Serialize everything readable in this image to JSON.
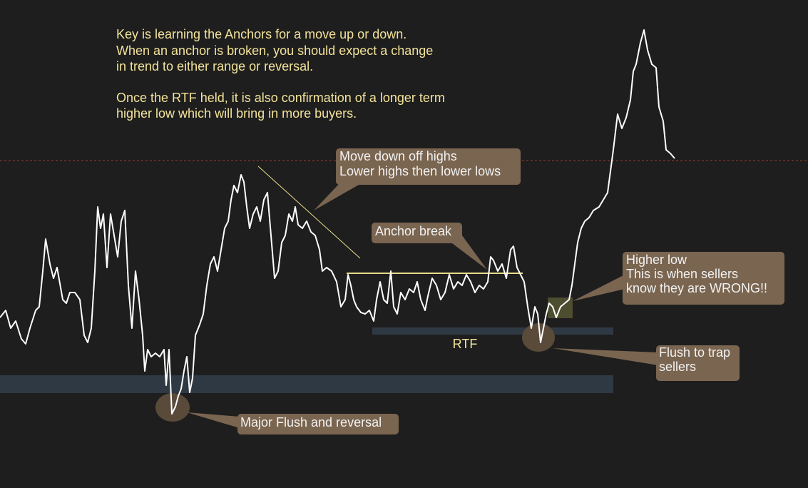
{
  "note": {
    "lines": [
      "Key is learning the Anchors for a move up or down.",
      "When an anchor is broken, you should expect a change",
      "in trend to either range or reversal.",
      "Once the RTF held, it is also confirmation of a longer term",
      "higher low which will bring in more buyers."
    ]
  },
  "callouts": [
    {
      "lines": [
        "Move down off highs",
        "Lower highs then lower lows"
      ]
    },
    {
      "lines": [
        "Anchor break"
      ]
    },
    {
      "lines": [
        "Higher low",
        "This is when sellers",
        "know they are WRONG!!"
      ]
    },
    {
      "lines": [
        "Flush to trap",
        "sellers"
      ]
    },
    {
      "lines": [
        "Major Flush and reversal"
      ]
    }
  ],
  "labels": {
    "rtf": "RTF"
  }
}
